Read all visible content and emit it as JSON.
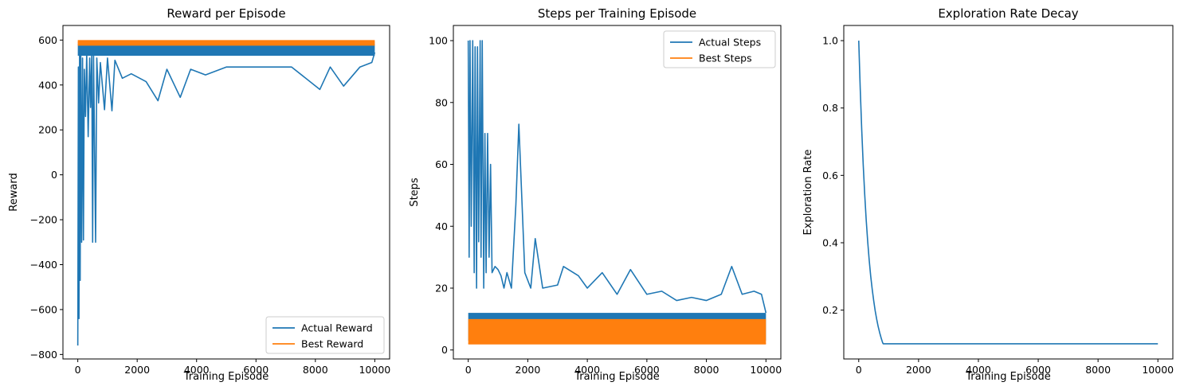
{
  "chart_data": [
    {
      "type": "line",
      "title": "Reward per Episode",
      "xlabel": "Training Episode",
      "ylabel": "Reward",
      "xlim": [
        -500,
        10500
      ],
      "ylim": [
        -820,
        665
      ],
      "xticks": [
        0,
        2000,
        4000,
        6000,
        8000,
        10000
      ],
      "xtick_labels": [
        "0",
        "2000",
        "4000",
        "6000",
        "8000",
        "10000"
      ],
      "yticks": [
        -800,
        -600,
        -400,
        -200,
        0,
        200,
        400,
        600
      ],
      "ytick_labels": [
        "−800",
        "−600",
        "−400",
        "−200",
        "0",
        "200",
        "400",
        "600"
      ],
      "grid": false,
      "legend_position": "lower right",
      "series": [
        {
          "name": "Actual Reward",
          "color": "#1f77b4",
          "band": {
            "x_start": 0,
            "x_end": 10000,
            "low": 530,
            "high": 585
          },
          "points": [
            [
              0,
              -760
            ],
            [
              20,
              480
            ],
            [
              40,
              -640
            ],
            [
              60,
              540
            ],
            [
              80,
              -470
            ],
            [
              100,
              560
            ],
            [
              130,
              -300
            ],
            [
              160,
              520
            ],
            [
              190,
              -290
            ],
            [
              220,
              470
            ],
            [
              260,
              260
            ],
            [
              300,
              540
            ],
            [
              350,
              170
            ],
            [
              400,
              520
            ],
            [
              430,
              300
            ],
            [
              470,
              530
            ],
            [
              500,
              -300
            ],
            [
              530,
              540
            ],
            [
              600,
              -300
            ],
            [
              640,
              520
            ],
            [
              700,
              320
            ],
            [
              760,
              500
            ],
            [
              900,
              290
            ],
            [
              1000,
              520
            ],
            [
              1150,
              285
            ],
            [
              1250,
              510
            ],
            [
              1500,
              430
            ],
            [
              1800,
              450
            ],
            [
              2300,
              415
            ],
            [
              2700,
              330
            ],
            [
              3000,
              470
            ],
            [
              3450,
              345
            ],
            [
              3800,
              470
            ],
            [
              4300,
              445
            ],
            [
              5000,
              480
            ],
            [
              6000,
              480
            ],
            [
              7200,
              480
            ],
            [
              8150,
              380
            ],
            [
              8500,
              480
            ],
            [
              8950,
              395
            ],
            [
              9500,
              480
            ],
            [
              9900,
              500
            ],
            [
              10000,
              545
            ]
          ]
        },
        {
          "name": "Best Reward",
          "color": "#ff7f0e",
          "band": {
            "x_start": 0,
            "x_end": 10000,
            "low": 575,
            "high": 600
          },
          "points": [
            [
              0,
              590
            ],
            [
              10000,
              590
            ]
          ]
        }
      ]
    },
    {
      "type": "line",
      "title": "Steps per Training Episode",
      "xlabel": "Training Episode",
      "ylabel": "Steps",
      "xlim": [
        -500,
        10500
      ],
      "ylim": [
        -2.9,
        104.9
      ],
      "xticks": [
        0,
        2000,
        4000,
        6000,
        8000,
        10000
      ],
      "xtick_labels": [
        "0",
        "2000",
        "4000",
        "6000",
        "8000",
        "10000"
      ],
      "yticks": [
        0,
        20,
        40,
        60,
        80,
        100
      ],
      "ytick_labels": [
        "0",
        "20",
        "40",
        "60",
        "80",
        "100"
      ],
      "grid": false,
      "legend_position": "upper right",
      "series": [
        {
          "name": "Actual Steps",
          "color": "#1f77b4",
          "band": {
            "x_start": 0,
            "x_end": 10000,
            "low": 3,
            "high": 12
          },
          "points": [
            [
              0,
              100
            ],
            [
              30,
              30
            ],
            [
              60,
              100
            ],
            [
              100,
              40
            ],
            [
              150,
              100
            ],
            [
              200,
              25
            ],
            [
              230,
              98
            ],
            [
              280,
              20
            ],
            [
              310,
              98
            ],
            [
              350,
              35
            ],
            [
              400,
              100
            ],
            [
              430,
              30
            ],
            [
              470,
              100
            ],
            [
              520,
              20
            ],
            [
              560,
              70
            ],
            [
              600,
              25
            ],
            [
              650,
              70
            ],
            [
              700,
              30
            ],
            [
              750,
              60
            ],
            [
              800,
              25
            ],
            [
              900,
              27
            ],
            [
              1000,
              26
            ],
            [
              1100,
              24
            ],
            [
              1200,
              20
            ],
            [
              1300,
              25
            ],
            [
              1450,
              20
            ],
            [
              1600,
              47
            ],
            [
              1700,
              73
            ],
            [
              1900,
              25
            ],
            [
              2100,
              20
            ],
            [
              2250,
              36
            ],
            [
              2500,
              20
            ],
            [
              3000,
              21
            ],
            [
              3200,
              27
            ],
            [
              3700,
              24
            ],
            [
              4000,
              20
            ],
            [
              4500,
              25
            ],
            [
              5000,
              18
            ],
            [
              5450,
              26
            ],
            [
              6000,
              18
            ],
            [
              6500,
              19
            ],
            [
              7000,
              16
            ],
            [
              7500,
              17
            ],
            [
              8000,
              16
            ],
            [
              8500,
              18
            ],
            [
              8850,
              27
            ],
            [
              9200,
              18
            ],
            [
              9600,
              19
            ],
            [
              9850,
              18
            ],
            [
              10000,
              12
            ]
          ]
        },
        {
          "name": "Best Steps",
          "color": "#ff7f0e",
          "band": {
            "x_start": 0,
            "x_end": 10000,
            "low": 2,
            "high": 10
          },
          "points": [
            [
              0,
              2
            ],
            [
              10000,
              2
            ]
          ]
        }
      ]
    },
    {
      "type": "line",
      "title": "Exploration Rate Decay",
      "xlabel": "Training Episode",
      "ylabel": "Exploration Rate",
      "xlim": [
        -500,
        10500
      ],
      "ylim": [
        0.055,
        1.045
      ],
      "xticks": [
        0,
        2000,
        4000,
        6000,
        8000,
        10000
      ],
      "xtick_labels": [
        "0",
        "2000",
        "4000",
        "6000",
        "8000",
        "10000"
      ],
      "yticks": [
        0.2,
        0.4,
        0.6,
        0.8,
        1.0
      ],
      "ytick_labels": [
        "0.2",
        "0.4",
        "0.6",
        "0.8",
        "1.0"
      ],
      "grid": false,
      "series": [
        {
          "color": "#1f77b4",
          "points": [
            [
              0,
              1.0
            ],
            [
              50,
              0.857
            ],
            [
              100,
              0.735
            ],
            [
              150,
              0.631
            ],
            [
              200,
              0.543
            ],
            [
              250,
              0.467
            ],
            [
              300,
              0.403
            ],
            [
              350,
              0.348
            ],
            [
              400,
              0.301
            ],
            [
              450,
              0.262
            ],
            [
              500,
              0.228
            ],
            [
              550,
              0.198
            ],
            [
              600,
              0.173
            ],
            [
              650,
              0.151
            ],
            [
              700,
              0.133
            ],
            [
              750,
              0.117
            ],
            [
              800,
              0.103
            ],
            [
              820,
              0.1
            ],
            [
              10000,
              0.1
            ]
          ]
        }
      ]
    }
  ]
}
